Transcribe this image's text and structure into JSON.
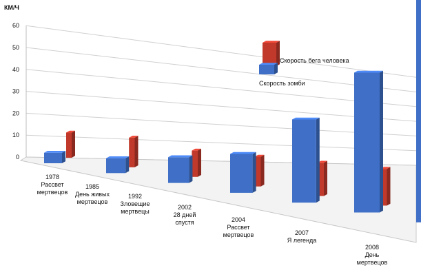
{
  "chart_data": {
    "type": "bar",
    "unit_label": "КМ/Ч",
    "ylim": [
      0,
      60
    ],
    "yticks": [
      0,
      10,
      20,
      30,
      40,
      50,
      60
    ],
    "grid": true,
    "legend_position": "top-right",
    "categories": [
      [
        "1978",
        "Рассвет",
        "мертвецов"
      ],
      [
        "1985",
        "День живых",
        "мертвецов"
      ],
      [
        "1992",
        "Зловещие",
        "мертвецы"
      ],
      [
        "2002",
        "28 дней",
        "спустя"
      ],
      [
        "2004",
        "Рассвет",
        "мертвецов"
      ],
      [
        "2007",
        "Я легенда"
      ],
      [
        "2008",
        "День",
        "мертвецов"
      ]
    ],
    "series": [
      {
        "name": "Скорость бега человека",
        "color": "#c0392b",
        "values": [
          13,
          13,
          10,
          10,
          10,
          10,
          10
        ]
      },
      {
        "name": "Скорость зомби",
        "color": "#3f6fc6",
        "values": [
          5,
          6,
          9,
          12,
          23,
          35,
          56
        ]
      }
    ]
  }
}
